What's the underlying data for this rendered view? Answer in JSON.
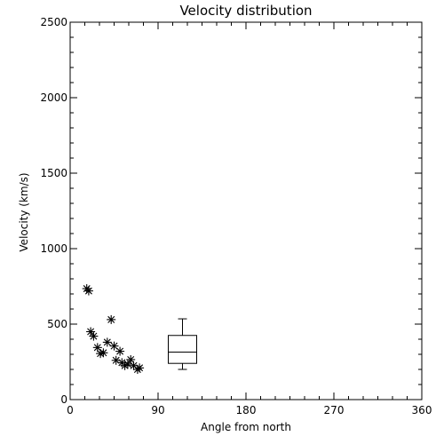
{
  "chart_data": {
    "type": "scatter",
    "title": "Velocity distribution",
    "xlabel": "Angle from north",
    "ylabel": "Velocity (km/s)",
    "xlim": [
      0,
      360
    ],
    "ylim": [
      0,
      2500
    ],
    "xticks": [
      0,
      90,
      180,
      270,
      360
    ],
    "yticks": [
      0,
      500,
      1000,
      1500,
      2000,
      2500
    ],
    "grid": false,
    "series": [
      {
        "marker": "asterisk",
        "points": [
          {
            "x": 17,
            "y": 735
          },
          {
            "x": 19,
            "y": 720
          },
          {
            "x": 21,
            "y": 450
          },
          {
            "x": 24,
            "y": 420
          },
          {
            "x": 28,
            "y": 345
          },
          {
            "x": 31,
            "y": 305
          },
          {
            "x": 34,
            "y": 310
          },
          {
            "x": 38,
            "y": 380
          },
          {
            "x": 42,
            "y": 530
          },
          {
            "x": 45,
            "y": 355
          },
          {
            "x": 47,
            "y": 260
          },
          {
            "x": 51,
            "y": 320
          },
          {
            "x": 53,
            "y": 245
          },
          {
            "x": 56,
            "y": 225
          },
          {
            "x": 59,
            "y": 235
          },
          {
            "x": 62,
            "y": 265
          },
          {
            "x": 65,
            "y": 225
          },
          {
            "x": 69,
            "y": 200
          },
          {
            "x": 71,
            "y": 210
          }
        ]
      }
    ],
    "boxplot": {
      "x": 115,
      "min": 200,
      "q1": 240,
      "median": 315,
      "q3": 425,
      "max": 535
    }
  }
}
